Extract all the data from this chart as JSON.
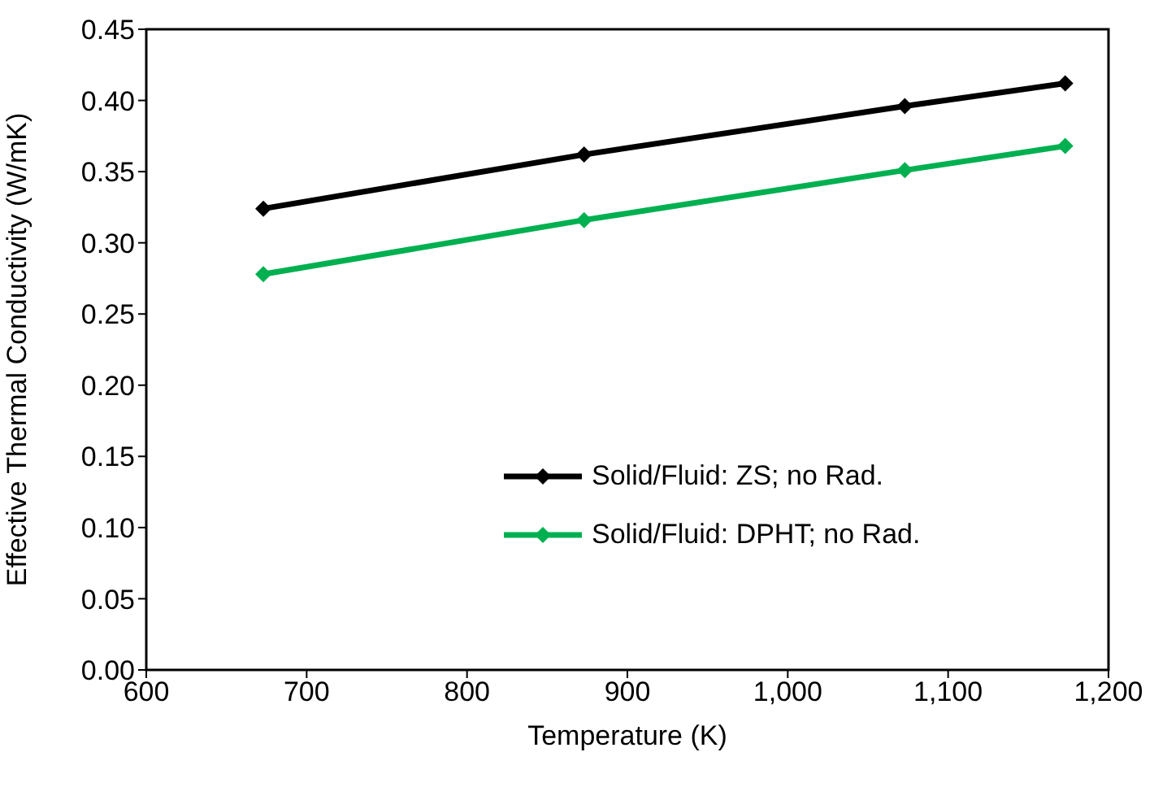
{
  "chart_data": {
    "type": "line",
    "xlabel": "Temperature (K)",
    "ylabel": "Effective Thermal Conductivity (W/mK)",
    "x": [
      673,
      873,
      1073,
      1173
    ],
    "series": [
      {
        "name": "Solid/Fluid: ZS; no Rad.",
        "color": "#000000",
        "values": [
          0.324,
          0.362,
          0.396,
          0.412
        ]
      },
      {
        "name": "Solid/Fluid: DPHT; no Rad.",
        "color": "#00b050",
        "values": [
          0.278,
          0.316,
          0.351,
          0.368
        ]
      }
    ],
    "xlim": [
      600,
      1200
    ],
    "xticks": [
      600,
      700,
      800,
      900,
      {
        "value": 1000,
        "label": "1,000"
      },
      {
        "value": 1100,
        "label": "1,100"
      },
      {
        "value": 1200,
        "label": "1,200"
      }
    ],
    "ylim": [
      0,
      0.45
    ],
    "yticks": [
      {
        "value": 0,
        "label": "0.00"
      },
      {
        "value": 0.05,
        "label": "0.05"
      },
      {
        "value": 0.1,
        "label": "0.10"
      },
      {
        "value": 0.15,
        "label": "0.15"
      },
      {
        "value": 0.2,
        "label": "0.20"
      },
      {
        "value": 0.25,
        "label": "0.25"
      },
      {
        "value": 0.3,
        "label": "0.30"
      },
      {
        "value": 0.35,
        "label": "0.35"
      },
      {
        "value": 0.4,
        "label": "0.40"
      },
      {
        "value": 0.45,
        "label": "0.45"
      }
    ],
    "grid": false,
    "legend": "bottom right",
    "marker": "diamond",
    "line_style": "solid"
  }
}
